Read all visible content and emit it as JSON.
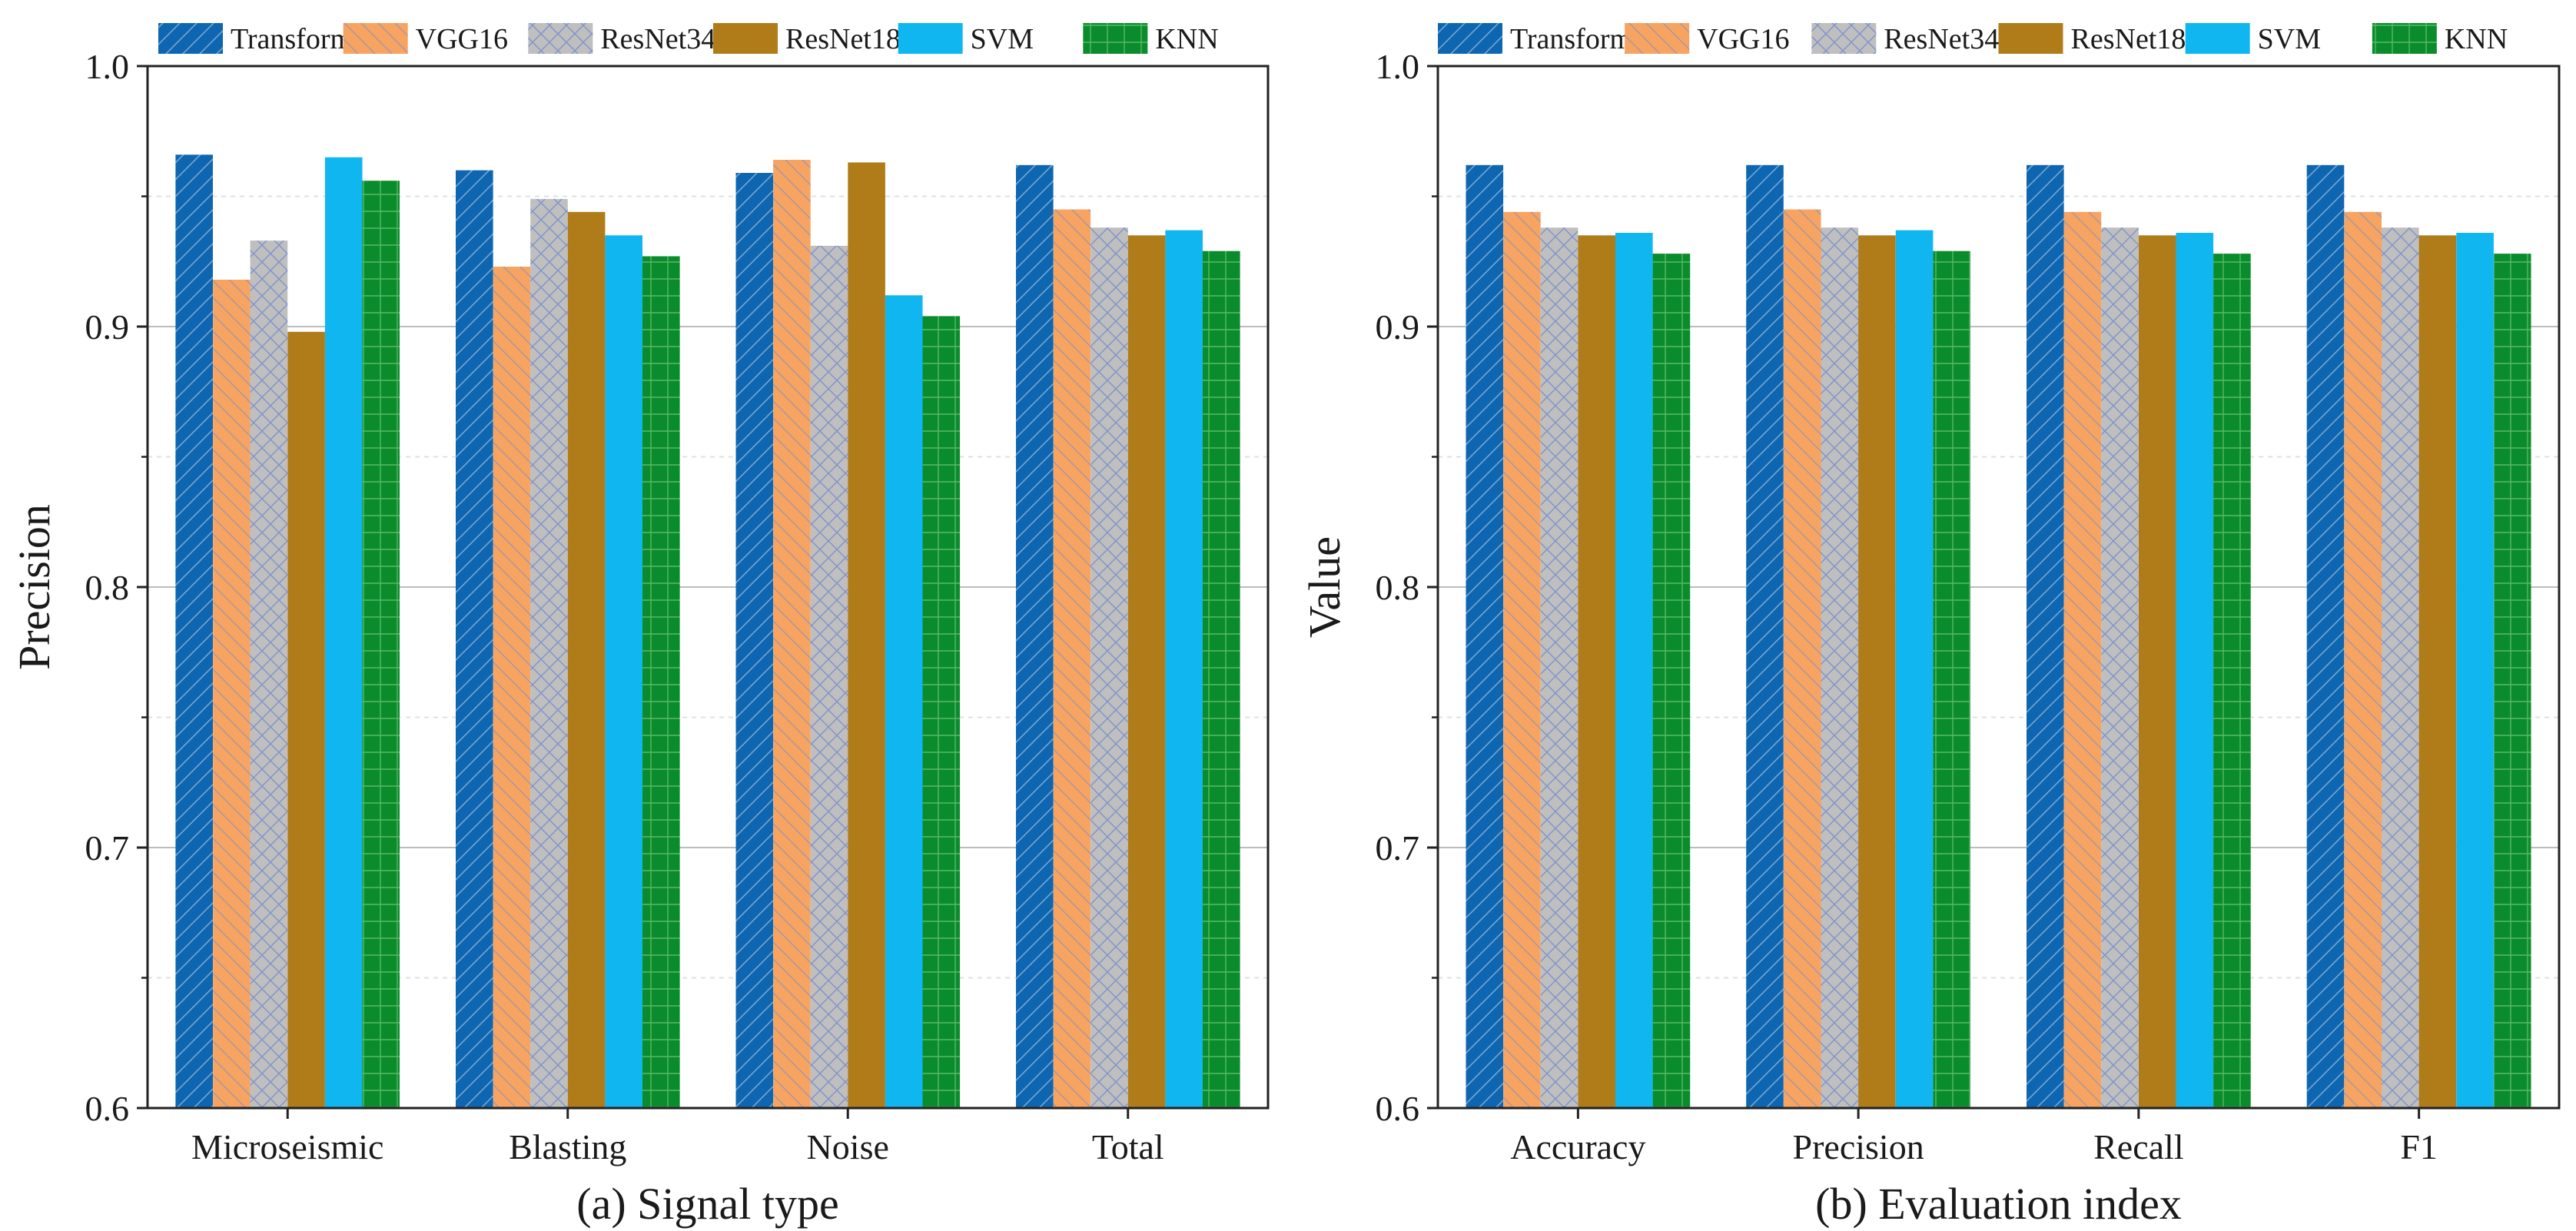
{
  "series_styles": [
    {
      "name": "Transformer",
      "color": "#0e66b1",
      "pattern": "fdiag"
    },
    {
      "name": "VGG16",
      "color": "#f7a462",
      "pattern": "bdiag"
    },
    {
      "name": "ResNet34",
      "color": "#bfbfbf",
      "pattern": "cross"
    },
    {
      "name": "ResNet18",
      "color": "#b07c1a",
      "pattern": "none"
    },
    {
      "name": "SVM",
      "color": "#10b6f0",
      "pattern": "none"
    },
    {
      "name": "KNN",
      "color": "#0a8c2c",
      "pattern": "grid"
    }
  ],
  "chart_data": [
    {
      "type": "bar",
      "title": "(a) Signal type",
      "xlabel": "(a) Signal type",
      "ylabel": "Precision",
      "ylim": [
        0.6,
        1.0
      ],
      "yticks": [
        "0.6",
        "0.7",
        "0.8",
        "0.9",
        "1.0"
      ],
      "grid": true,
      "legend": "top",
      "categories": [
        "Microseismic",
        "Blasting",
        "Noise",
        "Total"
      ],
      "series": [
        {
          "name": "Transformer",
          "values": [
            0.966,
            0.96,
            0.959,
            0.962
          ]
        },
        {
          "name": "VGG16",
          "values": [
            0.918,
            0.923,
            0.964,
            0.945
          ]
        },
        {
          "name": "ResNet34",
          "values": [
            0.933,
            0.949,
            0.931,
            0.938
          ]
        },
        {
          "name": "ResNet18",
          "values": [
            0.898,
            0.944,
            0.963,
            0.935
          ]
        },
        {
          "name": "SVM",
          "values": [
            0.965,
            0.935,
            0.912,
            0.937
          ]
        },
        {
          "name": "KNN",
          "values": [
            0.956,
            0.927,
            0.904,
            0.929
          ]
        }
      ]
    },
    {
      "type": "bar",
      "title": "(b) Evaluation index",
      "xlabel": "(b) Evaluation index",
      "ylabel": "Value",
      "ylim": [
        0.6,
        1.0
      ],
      "yticks": [
        "0.6",
        "0.7",
        "0.8",
        "0.9",
        "1.0"
      ],
      "grid": true,
      "legend": "top",
      "categories": [
        "Accuracy",
        "Precision",
        "Recall",
        "F1"
      ],
      "series": [
        {
          "name": "Transformer",
          "values": [
            0.962,
            0.962,
            0.962,
            0.962
          ]
        },
        {
          "name": "VGG16",
          "values": [
            0.944,
            0.945,
            0.944,
            0.944
          ]
        },
        {
          "name": "ResNet34",
          "values": [
            0.938,
            0.938,
            0.938,
            0.938
          ]
        },
        {
          "name": "ResNet18",
          "values": [
            0.935,
            0.935,
            0.935,
            0.935
          ]
        },
        {
          "name": "SVM",
          "values": [
            0.936,
            0.937,
            0.936,
            0.936
          ]
        },
        {
          "name": "KNN",
          "values": [
            0.928,
            0.929,
            0.928,
            0.928
          ]
        }
      ]
    }
  ]
}
